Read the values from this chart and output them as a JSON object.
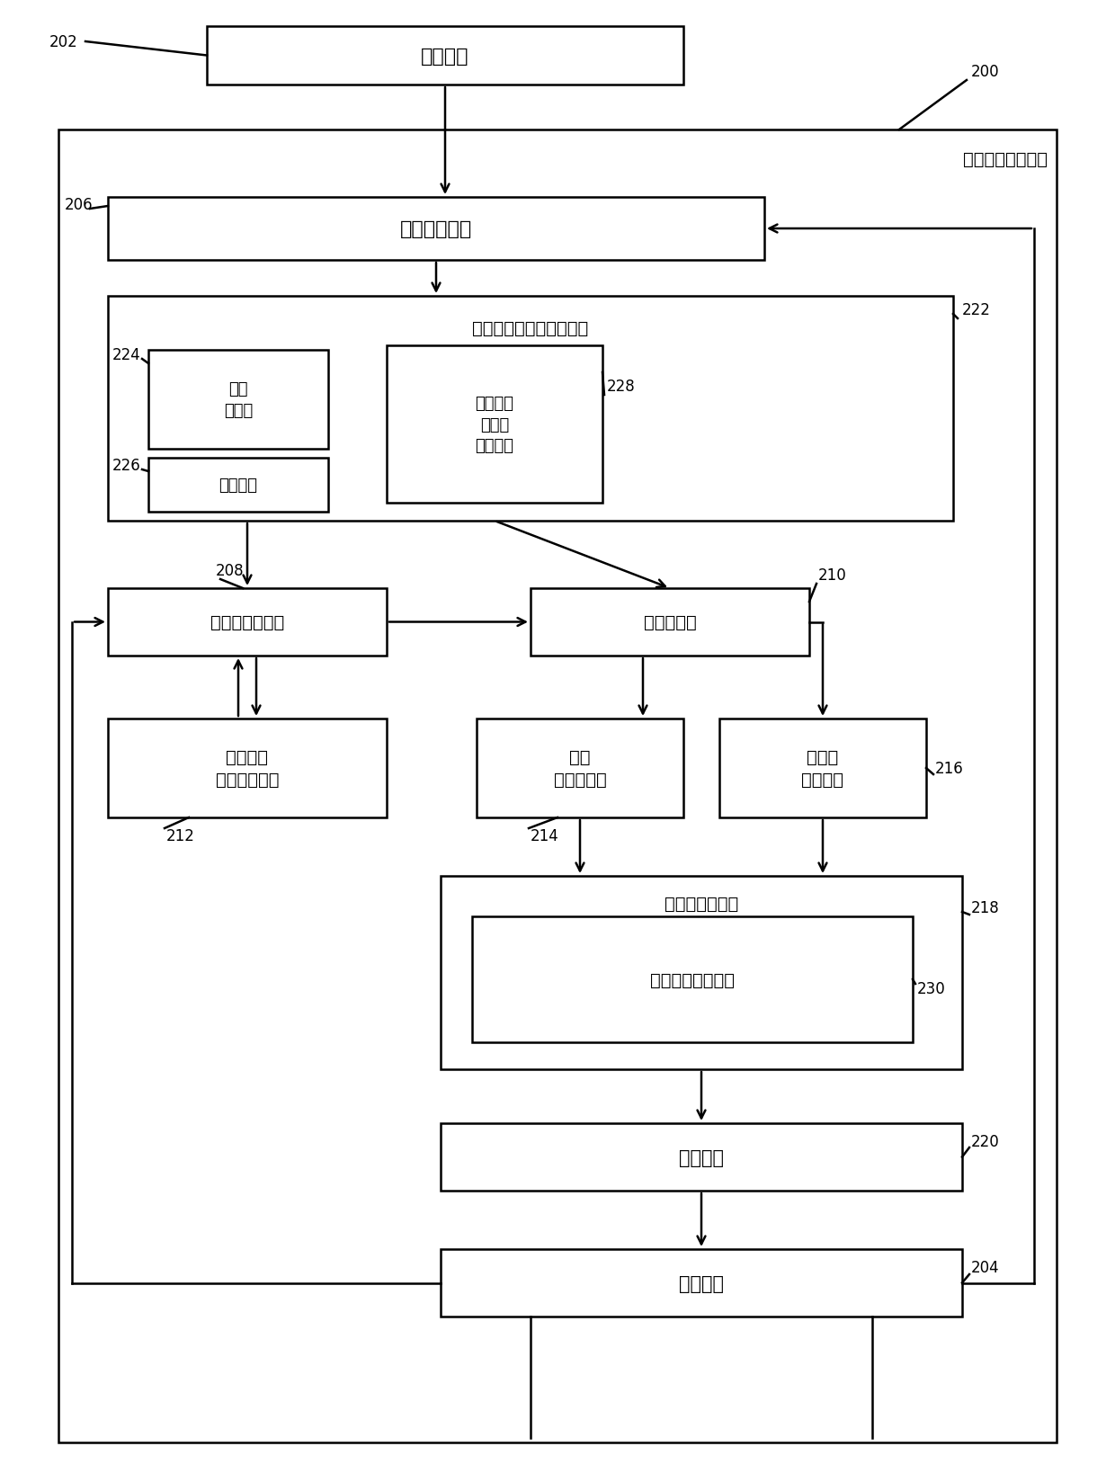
{
  "bg_color": "#ffffff",
  "line_color": "#000000",
  "labels": {
    "operator": "操作人员",
    "rca_system": "根本原因分析系统",
    "operator_interface": "操作人员接口",
    "problem_info": "操作人员提供的问题信息",
    "selected_domain": "选择\n的领域",
    "current_data": "当前数据",
    "hist_data": "操作人员\n提供的\n历史数据",
    "hist_model_db": "历史模型数据库",
    "unsupervised_model": "无监督模型",
    "rca_methods": "根本原因\n分析方法集合",
    "linear_model": "线性\n复杂性模型",
    "nonlinear_model": "非线性\n约束模型",
    "obj_func_gen": "目标函数产生器",
    "deep_learning": "深度学习神经网络",
    "opt_engine": "优化引擎",
    "solution": "解决方案"
  }
}
